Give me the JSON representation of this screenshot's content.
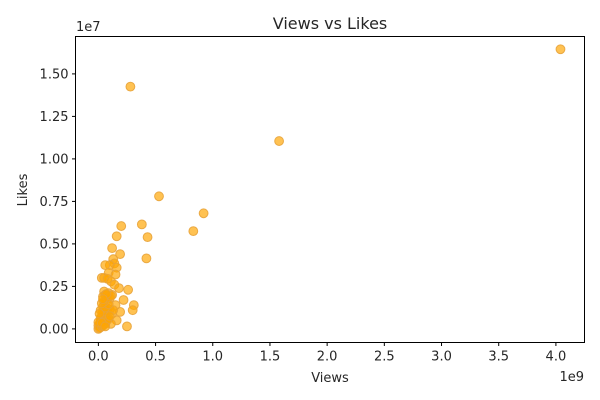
{
  "chart_data": {
    "type": "scatter",
    "title": "Views vs Likes",
    "xlabel": "Views",
    "ylabel": "Likes",
    "x_offset_label": "1e9",
    "y_offset_label": "1e7",
    "xlim": [
      -0.2,
      4.25
    ],
    "ylim": [
      -0.08,
      1.72
    ],
    "x_ticks": [
      0.0,
      0.5,
      1.0,
      1.5,
      2.0,
      2.5,
      3.0,
      3.5,
      4.0
    ],
    "x_tick_labels": [
      "0.0",
      "0.5",
      "1.0",
      "1.5",
      "2.0",
      "2.5",
      "3.0",
      "3.5",
      "4.0"
    ],
    "y_ticks": [
      0.0,
      0.25,
      0.5,
      0.75,
      1.0,
      1.25,
      1.5
    ],
    "y_tick_labels": [
      "0.00",
      "0.25",
      "0.50",
      "0.75",
      "1.00",
      "1.25",
      "1.50"
    ],
    "grid": false,
    "marker_color": "#FFA500",
    "series": [
      {
        "points": [
          [
            4.04,
            1.645
          ],
          [
            0.28,
            1.425
          ],
          [
            1.58,
            1.105
          ],
          [
            0.53,
            0.78
          ],
          [
            0.92,
            0.68
          ],
          [
            0.83,
            0.575
          ],
          [
            0.38,
            0.615
          ],
          [
            0.43,
            0.54
          ],
          [
            0.42,
            0.415
          ],
          [
            0.2,
            0.605
          ],
          [
            0.16,
            0.545
          ],
          [
            0.12,
            0.475
          ],
          [
            0.19,
            0.44
          ],
          [
            0.13,
            0.41
          ],
          [
            0.14,
            0.385
          ],
          [
            0.1,
            0.375
          ],
          [
            0.06,
            0.375
          ],
          [
            0.16,
            0.36
          ],
          [
            0.09,
            0.33
          ],
          [
            0.15,
            0.32
          ],
          [
            0.03,
            0.3
          ],
          [
            0.05,
            0.3
          ],
          [
            0.08,
            0.295
          ],
          [
            0.11,
            0.28
          ],
          [
            0.14,
            0.26
          ],
          [
            0.18,
            0.24
          ],
          [
            0.26,
            0.23
          ],
          [
            0.05,
            0.22
          ],
          [
            0.09,
            0.21
          ],
          [
            0.12,
            0.2
          ],
          [
            0.06,
            0.2
          ],
          [
            0.04,
            0.19
          ],
          [
            0.22,
            0.17
          ],
          [
            0.31,
            0.14
          ],
          [
            0.3,
            0.11
          ],
          [
            0.1,
            0.18
          ],
          [
            0.07,
            0.16
          ],
          [
            0.15,
            0.14
          ],
          [
            0.04,
            0.13
          ],
          [
            0.08,
            0.12
          ],
          [
            0.19,
            0.1
          ],
          [
            0.12,
            0.09
          ],
          [
            0.06,
            0.08
          ],
          [
            0.03,
            0.07
          ],
          [
            0.09,
            0.06
          ],
          [
            0.16,
            0.05
          ],
          [
            0.02,
            0.05
          ],
          [
            0.05,
            0.04
          ],
          [
            0.11,
            0.03
          ],
          [
            0.25,
            0.015
          ],
          [
            0.01,
            0.03
          ],
          [
            0.0,
            0.02
          ],
          [
            0.02,
            0.01
          ],
          [
            0.0,
            0.0
          ],
          [
            0.01,
            0.005
          ],
          [
            0.03,
            0.015
          ],
          [
            0.04,
            0.02
          ],
          [
            0.06,
            0.03
          ],
          [
            0.07,
            0.045
          ],
          [
            0.08,
            0.055
          ],
          [
            0.02,
            0.065
          ],
          [
            0.05,
            0.09
          ],
          [
            0.07,
            0.105
          ],
          [
            0.1,
            0.115
          ],
          [
            0.04,
            0.1
          ],
          [
            0.13,
            0.11
          ],
          [
            0.02,
            0.11
          ],
          [
            0.06,
            0.125
          ],
          [
            0.09,
            0.145
          ],
          [
            0.05,
            0.16
          ],
          [
            0.03,
            0.15
          ],
          [
            0.08,
            0.185
          ],
          [
            0.11,
            0.195
          ],
          [
            0.07,
            0.205
          ],
          [
            0.04,
            0.175
          ],
          [
            0.01,
            0.09
          ],
          [
            0.0,
            0.04
          ],
          [
            0.03,
            0.035
          ],
          [
            0.06,
            0.015
          ],
          [
            0.1,
            0.075
          ]
        ]
      }
    ]
  }
}
